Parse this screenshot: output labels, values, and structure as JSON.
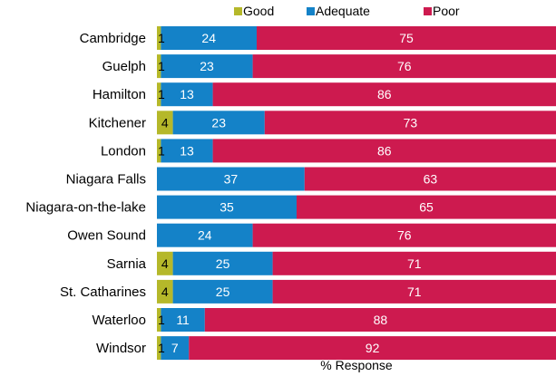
{
  "chart_data": {
    "type": "bar",
    "orientation": "horizontal",
    "stacked": true,
    "categories": [
      "Cambridge",
      "Guelph",
      "Hamilton",
      "Kitchener",
      "London",
      "Niagara Falls",
      "Niagara-on-the-lake",
      "Owen Sound",
      "Sarnia",
      "St. Catharines",
      "Waterloo",
      "Windsor"
    ],
    "series": [
      {
        "name": "Good",
        "color": "#b5b82a",
        "values": [
          1,
          1,
          1,
          4,
          1,
          0,
          0,
          0,
          4,
          4,
          1,
          1
        ]
      },
      {
        "name": "Adequate",
        "color": "#1482c8",
        "values": [
          24,
          23,
          13,
          23,
          13,
          37,
          35,
          24,
          25,
          25,
          11,
          7
        ]
      },
      {
        "name": "Poor",
        "color": "#cd1a4f",
        "values": [
          75,
          76,
          86,
          73,
          86,
          63,
          65,
          76,
          71,
          71,
          88,
          92
        ]
      }
    ],
    "xlabel": "% Response",
    "ylabel": "",
    "xlim": [
      0,
      100
    ],
    "legend": "top",
    "grid": false
  }
}
